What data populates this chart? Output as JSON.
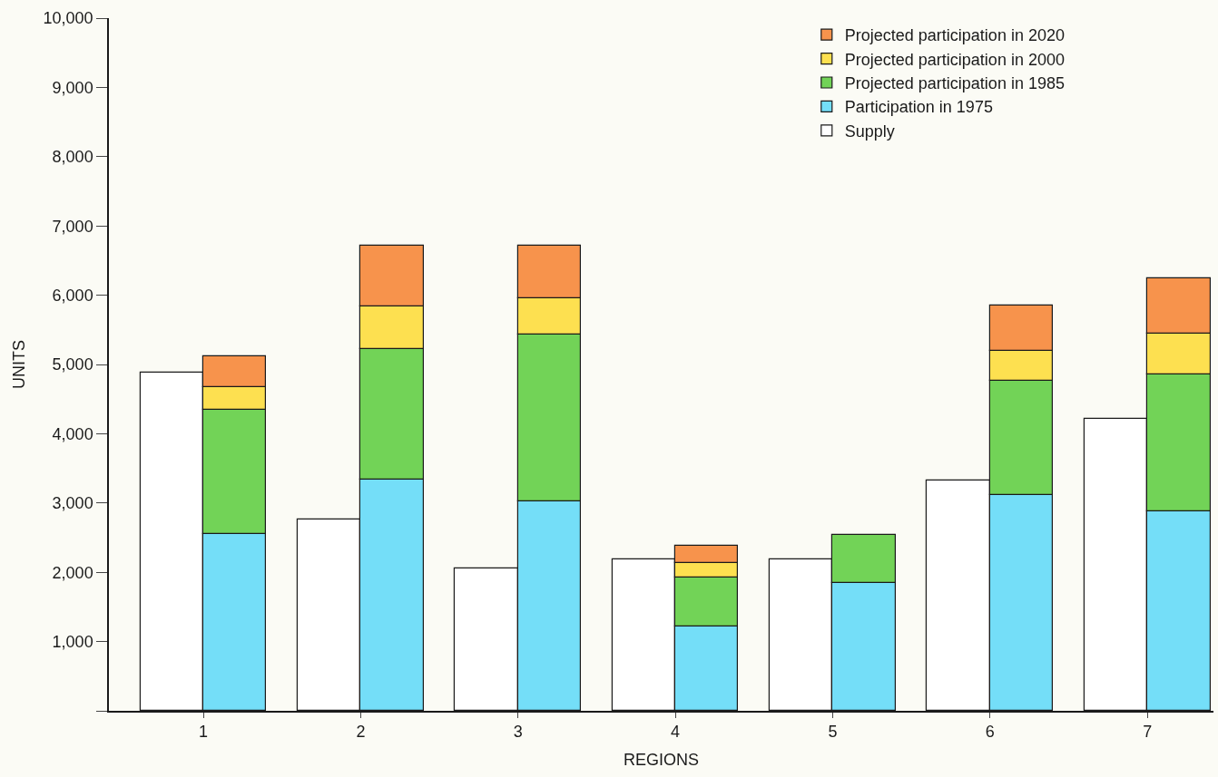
{
  "chart_data": {
    "type": "bar",
    "xlabel": "REGIONS",
    "ylabel": "UNITS",
    "categories": [
      "1",
      "2",
      "3",
      "4",
      "5",
      "6",
      "7"
    ],
    "series": [
      {
        "name": "Supply",
        "color": "#ffffff",
        "values": [
          4880,
          2760,
          2050,
          2190,
          2180,
          3330,
          4220
        ]
      },
      {
        "name": "Participation in 1975",
        "color": "#74def8",
        "values": [
          2550,
          3340,
          3030,
          1220,
          1840,
          3120,
          2880
        ],
        "base": [
          0,
          0,
          0,
          0,
          0,
          0,
          0
        ]
      },
      {
        "name": "Projected participation in 1985",
        "color": "#72d357",
        "values": [
          1800,
          1880,
          2400,
          700,
          700,
          1640,
          1970
        ],
        "base": [
          2550,
          3340,
          3030,
          1220,
          1840,
          3120,
          2880
        ]
      },
      {
        "name": "Projected participation in 2000",
        "color": "#fde050",
        "values": [
          320,
          620,
          530,
          210,
          null,
          440,
          590
        ],
        "base": [
          4350,
          5220,
          5430,
          1920,
          null,
          4760,
          4850
        ]
      },
      {
        "name": "Projected participation in 2020",
        "color": "#f7934c",
        "values": [
          450,
          880,
          760,
          250,
          null,
          650,
          800
        ],
        "base": [
          4670,
          5840,
          5960,
          2130,
          null,
          5200,
          5440
        ]
      }
    ],
    "ylim": [
      0,
      10000
    ],
    "yticks": [
      {
        "value": 0,
        "label": null
      },
      {
        "value": 1000,
        "label": "1,000"
      },
      {
        "value": 2000,
        "label": "2,000"
      },
      {
        "value": 3000,
        "label": "3,000"
      },
      {
        "value": 4000,
        "label": "4,000"
      },
      {
        "value": 5000,
        "label": "5,000"
      },
      {
        "value": 6000,
        "label": "6,000"
      },
      {
        "value": 7000,
        "label": "7,000"
      },
      {
        "value": 8000,
        "label": "8,000"
      },
      {
        "value": 9000,
        "label": "9,000"
      },
      {
        "value": 10000,
        "label": "10,000"
      }
    ],
    "grid": false,
    "legend": "top right"
  }
}
